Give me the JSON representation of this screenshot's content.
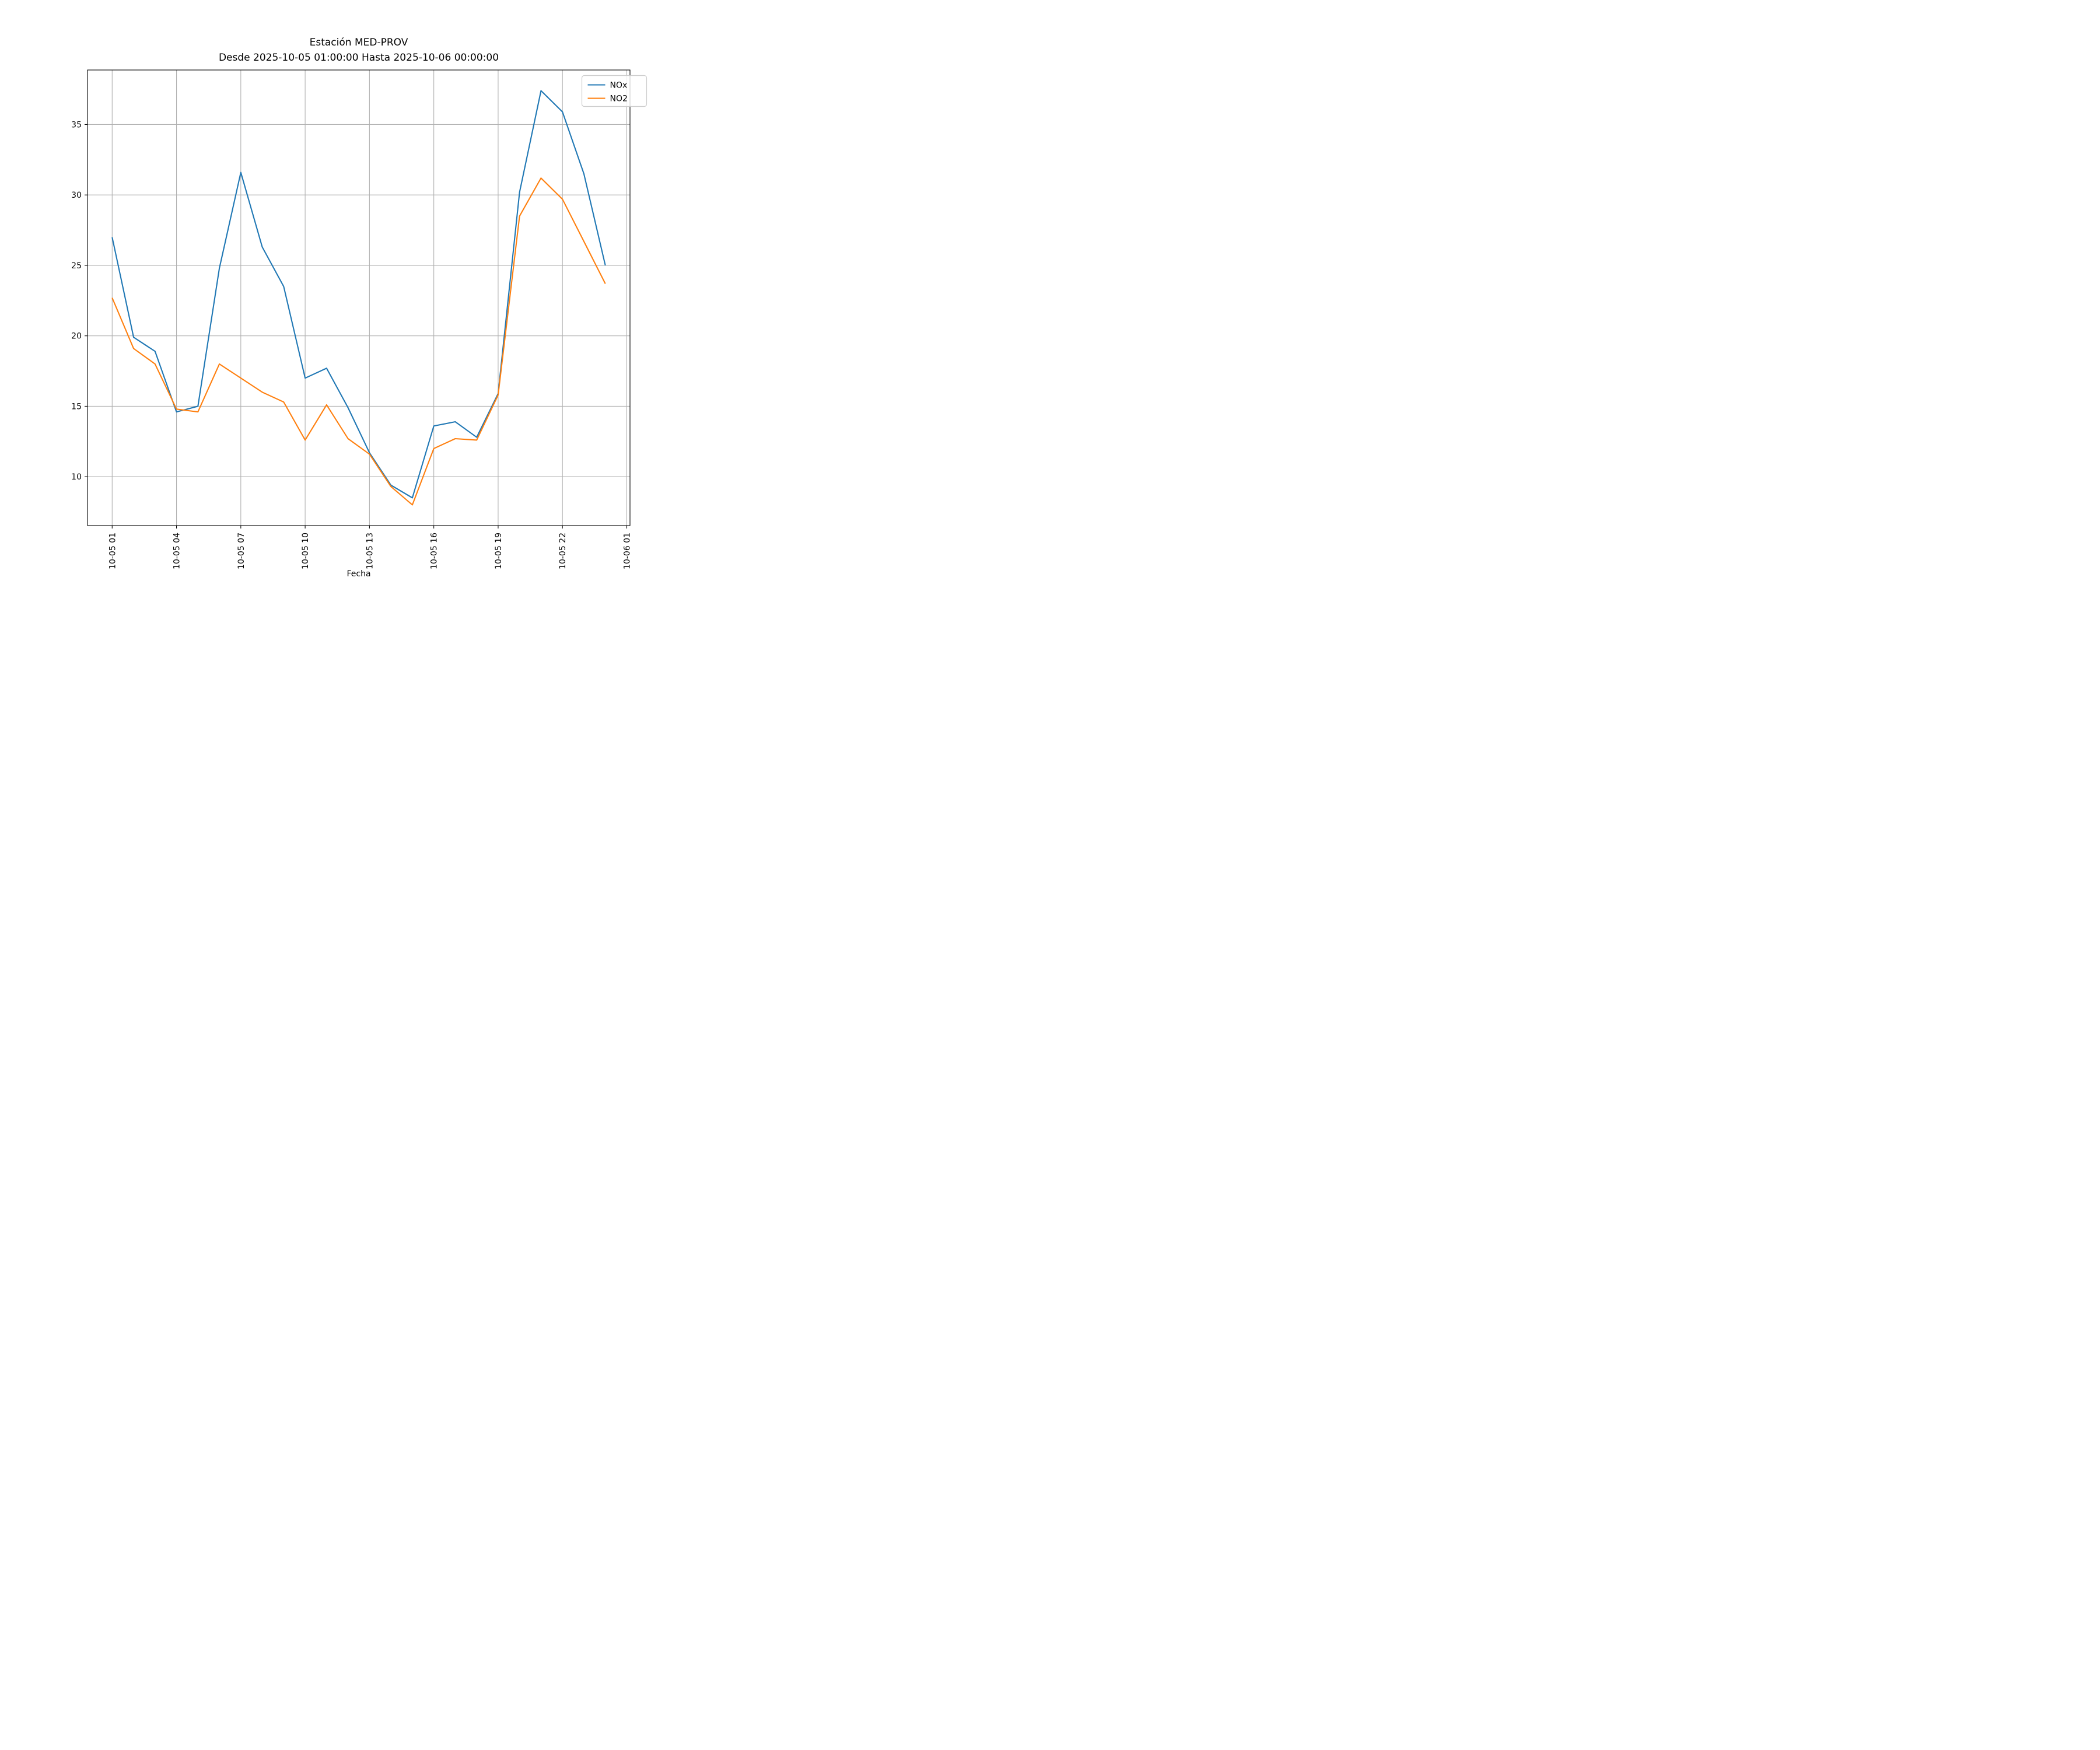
{
  "chart_data": {
    "type": "line",
    "title": "Estación MED-PROV",
    "subtitle": "Desde 2025-10-05 01:00:00 Hasta 2025-10-06 00:00:00",
    "xlabel": "Fecha",
    "ylabel": "",
    "grid": true,
    "legend_position": "upper right",
    "x_start": "2025-10-05 01:00",
    "x_end": "2025-10-06 00:00",
    "x_interval_hours": 1,
    "x_tick_indices": [
      0,
      3,
      6,
      9,
      12,
      15,
      18,
      21,
      24
    ],
    "x_tick_labels": [
      "10-05 01",
      "10-05 04",
      "10-05 07",
      "10-05 10",
      "10-05 13",
      "10-05 16",
      "10-05 19",
      "10-05 22",
      "10-06 01"
    ],
    "y_ticks": [
      10,
      15,
      20,
      25,
      30,
      35
    ],
    "y_axis_range": [
      6.53,
      38.87
    ],
    "x_axis_margin_hours": 1.15,
    "series": [
      {
        "name": "NOx",
        "color": "#1f77b4",
        "values": [
          27.0,
          19.9,
          18.9,
          14.6,
          15.0,
          24.8,
          31.6,
          26.3,
          23.5,
          17.0,
          17.7,
          14.9,
          11.7,
          9.4,
          8.5,
          13.6,
          13.9,
          12.8,
          15.9,
          30.2,
          37.4,
          35.9,
          31.5,
          25.0
        ]
      },
      {
        "name": "NO2",
        "color": "#ff7f0e",
        "values": [
          22.7,
          19.1,
          18.0,
          14.8,
          14.6,
          18.0,
          17.0,
          16.0,
          15.3,
          12.6,
          15.1,
          12.7,
          11.6,
          9.3,
          8.0,
          12.0,
          12.7,
          12.6,
          15.8,
          28.5,
          31.2,
          29.7,
          26.7,
          23.7
        ]
      }
    ],
    "style": {
      "grid_color": "#b0b0b0",
      "spine_color": "#000000",
      "legend_edge_color": "#cccccc",
      "background": "#ffffff"
    }
  }
}
